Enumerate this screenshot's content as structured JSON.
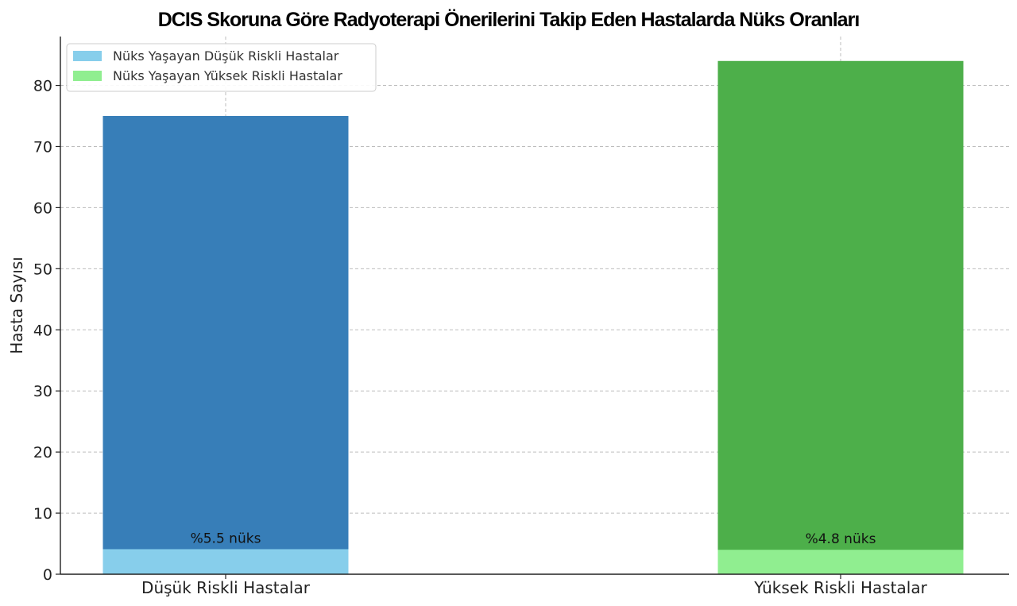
{
  "chart_data": {
    "type": "bar",
    "stacked": true,
    "title": "DCIS Skoruna Göre Radyoterapi Önerilerini Takip Eden Hastalarda Nüks Oranları",
    "xlabel": "",
    "ylabel": "Hasta Sayısı",
    "ylim": [
      0,
      88
    ],
    "yticks": [
      0,
      10,
      20,
      30,
      40,
      50,
      60,
      70,
      80
    ],
    "grid": true,
    "legend_position": "top-left",
    "categories": [
      "Düşük Riskli Hastalar",
      "Yüksek Riskli Hastalar"
    ],
    "totals": [
      75,
      84
    ],
    "total_colors": [
      "#377eb8",
      "#4daf4a"
    ],
    "recurrence": [
      4.1,
      4.0
    ],
    "recurrence_colors": [
      "#87ceeb",
      "#90ee90"
    ],
    "annotations": [
      "%5.5 nüks",
      "%4.8 nüks"
    ],
    "legend": [
      {
        "label": "Nüks Yaşayan Düşük Riskli Hastalar",
        "color": "#87ceeb"
      },
      {
        "label": "Nüks Yaşayan Yüksek Riskli Hastalar",
        "color": "#90ee90"
      }
    ]
  }
}
